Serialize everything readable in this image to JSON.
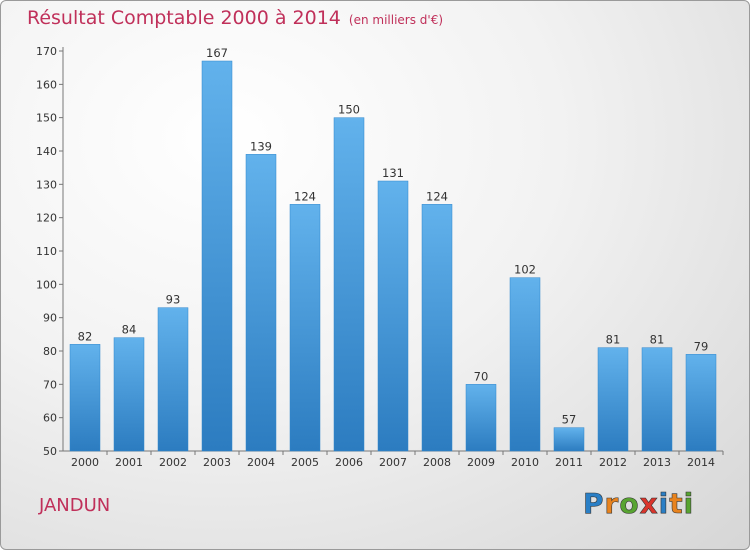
{
  "title": "Résultat Comptable 2000 à 2014",
  "unit": "(en milliers d'€)",
  "commune": "JANDUN",
  "logo": {
    "text": "Proxiti",
    "colors": [
      "#2a7fc6",
      "#e8831e",
      "#58a431",
      "#d9342b",
      "#2a7fc6",
      "#e8831e",
      "#58a431"
    ]
  },
  "colors": {
    "bar": "#3d95d8",
    "bar_light": "#62b2ec",
    "bar_dark": "#2c7cc0",
    "title": "#c0305a"
  },
  "chart_data": {
    "type": "bar",
    "categories": [
      "2000",
      "2001",
      "2002",
      "2003",
      "2004",
      "2005",
      "2006",
      "2007",
      "2008",
      "2009",
      "2010",
      "2011",
      "2012",
      "2013",
      "2014"
    ],
    "values": [
      82,
      84,
      93,
      167,
      139,
      124,
      150,
      131,
      124,
      70,
      102,
      57,
      81,
      81,
      79
    ],
    "ylim": [
      50,
      170
    ],
    "yticks": [
      50,
      60,
      70,
      80,
      90,
      100,
      110,
      120,
      130,
      140,
      150,
      160,
      170
    ],
    "grid": false
  }
}
